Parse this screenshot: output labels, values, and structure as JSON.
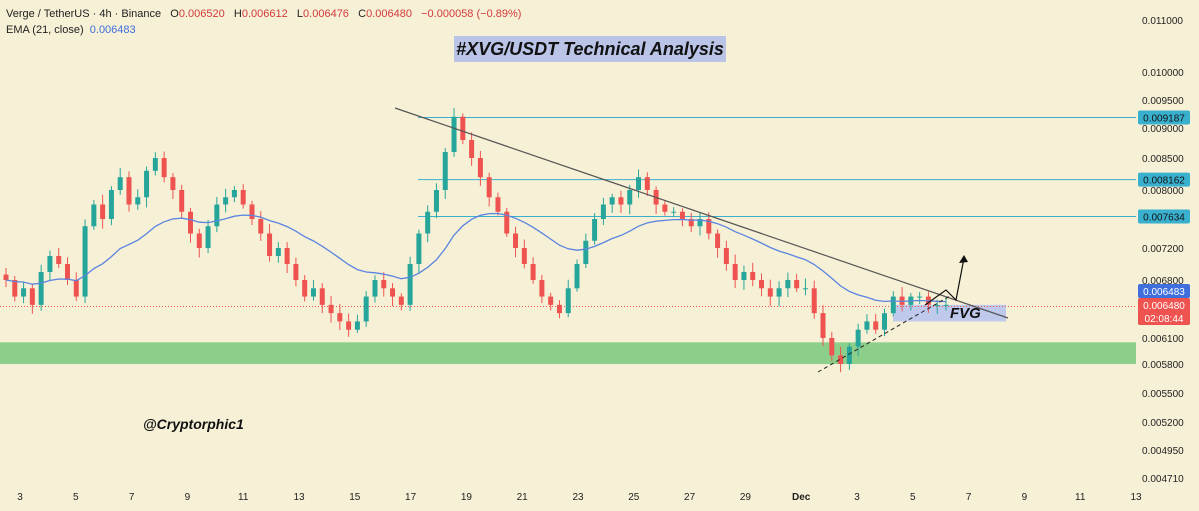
{
  "header": {
    "symbol": "Verge / TetherUS · 4h · Binance",
    "open_label": "O",
    "open": "0.006520",
    "high_label": "H",
    "high": "0.006612",
    "low_label": "L",
    "low": "0.006476",
    "close_label": "C",
    "close": "0.006480",
    "change": "−0.000058 (−0.89%)",
    "ema_label": "EMA (21, close)",
    "ema_value": "0.006483"
  },
  "title": "#XVG/USDT Technical Analysis",
  "watermark": "@Cryptorphic1",
  "annotations": {
    "fvg": "FVG"
  },
  "colors": {
    "background": "#f6f0d6",
    "up_candle": "#26a69a",
    "down_candle": "#ef5350",
    "ema": "#5b84e0",
    "horizontal_levels": "#3ab0cf",
    "support_zone": "#8ccf8a",
    "fvg_zone": "#b8c4ee"
  },
  "chart_data": {
    "type": "candlestick",
    "title": "#XVG/USDT Technical Analysis",
    "symbol": "XVG/USDT",
    "interval": "4h",
    "x_ticks": [
      "3",
      "5",
      "7",
      "9",
      "11",
      "13",
      "15",
      "17",
      "19",
      "21",
      "23",
      "25",
      "27",
      "29",
      "Dec",
      "3",
      "5",
      "7",
      "9",
      "11",
      "13"
    ],
    "y_ticks": [
      "0.011000",
      "0.010000",
      "0.009500",
      "0.009000",
      "0.008500",
      "0.008000",
      "0.007200",
      "0.006800",
      "0.006100",
      "0.005800",
      "0.005500",
      "0.005200",
      "0.004950",
      "0.004710"
    ],
    "levels": [
      {
        "label": "0.009187",
        "value": 0.009187
      },
      {
        "label": "0.008162",
        "value": 0.008162
      },
      {
        "label": "0.007634",
        "value": 0.007634
      }
    ],
    "ema_badge": {
      "label": "0.006483",
      "value": 0.006483
    },
    "price_badge": {
      "label": "0.006480",
      "value": 0.00648,
      "countdown": "02:08:44"
    },
    "support_zone": {
      "from": 0.0058,
      "to": 0.00605
    },
    "fvg_zone": {
      "from": 0.0063,
      "to": 0.0065
    },
    "trendline": {
      "from_price": 0.0094,
      "to_price": 0.0065
    },
    "close_path": [
      0.0068,
      0.0066,
      0.0067,
      0.0065,
      0.0069,
      0.0071,
      0.007,
      0.0068,
      0.0066,
      0.0075,
      0.0078,
      0.0076,
      0.008,
      0.0082,
      0.0078,
      0.0079,
      0.0083,
      0.0085,
      0.0082,
      0.008,
      0.0077,
      0.0074,
      0.0072,
      0.0075,
      0.0078,
      0.0079,
      0.008,
      0.0078,
      0.0076,
      0.0074,
      0.0071,
      0.0072,
      0.007,
      0.0068,
      0.0066,
      0.0067,
      0.0065,
      0.0064,
      0.0063,
      0.0062,
      0.0063,
      0.0066,
      0.0068,
      0.0067,
      0.0066,
      0.0065,
      0.007,
      0.0074,
      0.0077,
      0.008,
      0.0086,
      0.0092,
      0.0088,
      0.0085,
      0.0082,
      0.0079,
      0.0077,
      0.0074,
      0.0072,
      0.007,
      0.0068,
      0.0066,
      0.0065,
      0.0064,
      0.0067,
      0.007,
      0.0073,
      0.0076,
      0.0078,
      0.0079,
      0.0078,
      0.008,
      0.0082,
      0.008,
      0.0078,
      0.0077,
      0.0077,
      0.0076,
      0.0075,
      0.0076,
      0.0074,
      0.0072,
      0.007,
      0.0068,
      0.0069,
      0.0068,
      0.0067,
      0.0066,
      0.0067,
      0.0068,
      0.0067,
      0.0067,
      0.0064,
      0.0061,
      0.0059,
      0.0058,
      0.006,
      0.0062,
      0.0063,
      0.0062,
      0.0064,
      0.0066,
      0.0065,
      0.0066,
      0.0066,
      0.0065,
      0.0065,
      0.0065
    ]
  }
}
